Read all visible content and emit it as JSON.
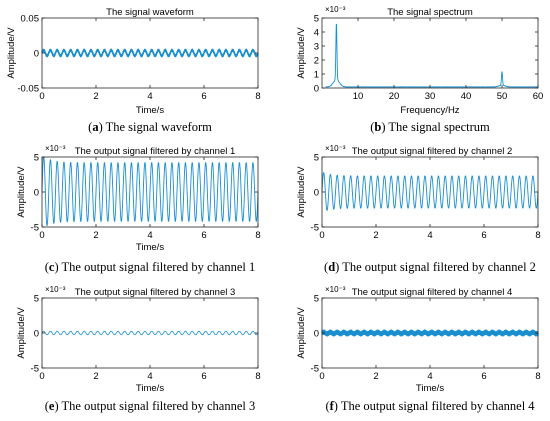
{
  "line_color": "#1a8fd0",
  "panels": [
    {
      "title": "The signal waveform",
      "caption_letter": "a",
      "caption_text": " The signal waveform",
      "xlabel": "Time/s",
      "ylabel": "Amplitude/V",
      "multiplier": "",
      "kind": "sine",
      "xlim": [
        0,
        8
      ],
      "ylim": [
        -0.05,
        0.05
      ],
      "xticks": [
        0,
        2,
        4,
        6,
        8
      ],
      "xtick_labels": [
        "0",
        "2",
        "4",
        "6",
        "8"
      ],
      "yticks": [
        -0.05,
        0,
        0.05
      ],
      "ytick_labels": [
        "-0.05",
        "0",
        "0.05"
      ],
      "frequency_hz": 4,
      "amplitude": 0.004,
      "harmonic_hz": 50,
      "harmonic_amplitude": 0.0015,
      "line_width": 1.3
    },
    {
      "title": "The signal spectrum",
      "caption_letter": "b",
      "caption_text": " The signal spectrum",
      "xlabel": "Frequency/Hz",
      "ylabel": "Amplitude/V",
      "multiplier": "×10⁻³",
      "kind": "spectrum",
      "xlim": [
        0,
        60
      ],
      "ylim": [
        0,
        5
      ],
      "xticks": [
        10,
        20,
        30,
        40,
        50,
        60
      ],
      "xtick_labels": [
        "10",
        "20",
        "30",
        "40",
        "50",
        "60"
      ],
      "yticks": [
        0,
        1,
        2,
        3,
        4,
        5
      ],
      "ytick_labels": [
        "0",
        "1",
        "2",
        "3",
        "4",
        "5"
      ],
      "peaks": [
        {
          "x": 4,
          "y": 4.2
        },
        {
          "x": 50,
          "y": 1.0
        }
      ],
      "line_width": 0.9
    },
    {
      "title": "The output signal filtered by channel 1",
      "caption_letter": "c",
      "caption_text": " The output signal filtered by channel 1",
      "xlabel": "Time/s",
      "ylabel": "Amplitude/V",
      "multiplier": "×10⁻³",
      "kind": "sine",
      "xlim": [
        0,
        8
      ],
      "ylim": [
        -5,
        5
      ],
      "xticks": [
        0,
        2,
        4,
        6,
        8
      ],
      "xtick_labels": [
        "0",
        "2",
        "4",
        "6",
        "8"
      ],
      "yticks": [
        -5,
        0,
        5
      ],
      "ytick_labels": [
        "-5",
        "0",
        "5"
      ],
      "frequency_hz": 4,
      "amplitude": 4.2,
      "transient": true,
      "line_width": 0.9
    },
    {
      "title": "The output signal filtered by channel 2",
      "caption_letter": "d",
      "caption_text": " The output signal filtered by channel 2",
      "xlabel": "",
      "ylabel": "Amplitude/V",
      "multiplier": "×10⁻³",
      "kind": "sine",
      "xlim": [
        0,
        8
      ],
      "ylim": [
        -5,
        5
      ],
      "xticks": [
        0,
        2,
        4,
        6,
        8
      ],
      "xtick_labels": [
        "0",
        "2",
        "4",
        "6",
        "8"
      ],
      "yticks": [
        -5,
        0,
        5
      ],
      "ytick_labels": [
        "-5",
        "0",
        "5"
      ],
      "frequency_hz": 4,
      "amplitude": 2.3,
      "transient": true,
      "line_width": 0.9
    },
    {
      "title": "The output signal filtered by channel 3",
      "caption_letter": "e",
      "caption_text": " The output signal filtered by channel 3",
      "xlabel": "Time/s",
      "ylabel": "Amplitude/V",
      "multiplier": "×10⁻³",
      "kind": "sine",
      "xlim": [
        0,
        8
      ],
      "ylim": [
        -5,
        5
      ],
      "xticks": [
        0,
        2,
        4,
        6,
        8
      ],
      "xtick_labels": [
        "0",
        "2",
        "4",
        "6",
        "8"
      ],
      "yticks": [
        -5,
        0,
        5
      ],
      "ytick_labels": [
        "-5",
        "0",
        "5"
      ],
      "frequency_hz": 4,
      "amplitude": 0.25,
      "line_width": 0.8
    },
    {
      "title": "The output signal filtered by channel 4",
      "caption_letter": "f",
      "caption_text": " The output signal filtered by channel 4",
      "xlabel": "Time/s",
      "ylabel": "Amplitude/V",
      "multiplier": "×10⁻³",
      "kind": "sine",
      "xlim": [
        0,
        8
      ],
      "ylim": [
        -5,
        5
      ],
      "xticks": [
        0,
        2,
        4,
        6,
        8
      ],
      "xtick_labels": [
        "0",
        "2",
        "4",
        "6",
        "8"
      ],
      "yticks": [
        -5,
        0,
        5
      ],
      "ytick_labels": [
        "-5",
        "0",
        "5"
      ],
      "frequency_hz": 50,
      "amplitude": 0.3,
      "envelope_hz": 4,
      "envelope_amplitude": 0.12,
      "line_width": 1.4
    }
  ],
  "chart_data": [
    {
      "type": "line",
      "title": "The signal waveform",
      "xlabel": "Time/s",
      "ylabel": "Amplitude/V",
      "xlim": [
        0,
        8
      ],
      "ylim": [
        -0.05,
        0.05
      ],
      "x": [
        0,
        8
      ],
      "series": [
        {
          "values": [
            0,
            0
          ]
        }
      ]
    },
    {
      "type": "line",
      "title": "The signal spectrum",
      "xlabel": "Frequency/Hz",
      "ylabel": "Amplitude/V (×10⁻³)",
      "xlim": [
        0,
        60
      ],
      "ylim": [
        0,
        5
      ],
      "x": [
        4,
        50
      ],
      "series": [
        {
          "values": [
            4.2,
            1.0
          ]
        }
      ]
    },
    {
      "type": "line",
      "title": "The output signal filtered by channel 1",
      "xlabel": "Time/s",
      "ylabel": "Amplitude/V (×10⁻³)",
      "xlim": [
        0,
        8
      ],
      "ylim": [
        -5,
        5
      ],
      "x": [
        0,
        8
      ],
      "series": [
        {
          "values": [
            -4.2,
            4.2
          ]
        }
      ]
    },
    {
      "type": "line",
      "title": "The output signal filtered by channel 2",
      "xlabel": "",
      "ylabel": "Amplitude/V (×10⁻³)",
      "xlim": [
        0,
        8
      ],
      "ylim": [
        -5,
        5
      ],
      "x": [
        0,
        8
      ],
      "series": [
        {
          "values": [
            -2.3,
            2.3
          ]
        }
      ]
    },
    {
      "type": "line",
      "title": "The output signal filtered by channel 3",
      "xlabel": "Time/s",
      "ylabel": "Amplitude/V (×10⁻³)",
      "xlim": [
        0,
        8
      ],
      "ylim": [
        -5,
        5
      ],
      "x": [
        0,
        8
      ],
      "series": [
        {
          "values": [
            -0.25,
            0.25
          ]
        }
      ]
    },
    {
      "type": "line",
      "title": "The output signal filtered by channel 4",
      "xlabel": "Time/s",
      "ylabel": "Amplitude/V (×10⁻³)",
      "xlim": [
        0,
        8
      ],
      "ylim": [
        -5,
        5
      ],
      "x": [
        0,
        8
      ],
      "series": [
        {
          "values": [
            -0.3,
            0.3
          ]
        }
      ]
    }
  ]
}
